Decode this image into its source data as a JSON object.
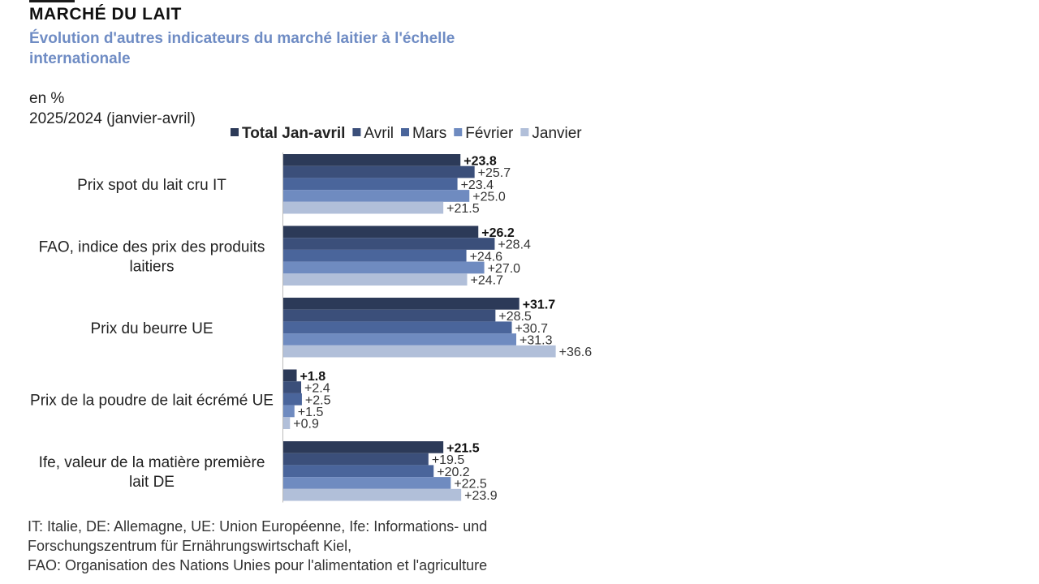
{
  "title": "MARCHÉ DU LAIT",
  "subtitle": "Évolution d'autres indicateurs du marché laitier à l'échelle internationale",
  "unit_line1": "en %",
  "unit_line2": "2025/2024 (janvier-avril)",
  "footnote": {
    "line1": "IT: Italie, DE: Allemagne, UE: Union Européenne, Ife: Informations- und",
    "line2": "Forschungszentrum für Ernährungswirtschaft Kiel,",
    "line3": "FAO: Organisation des Nations Unies pour l'alimentation et l'agriculture"
  },
  "chart_data": {
    "type": "bar",
    "orientation": "horizontal",
    "categories": [
      "Prix spot du lait cru IT",
      "FAO, indice des prix des produits laitiers",
      "Prix du beurre UE",
      "Prix de la poudre de lait écrémé UE",
      "Ife, valeur de la matière première lait DE"
    ],
    "series": [
      {
        "name": "Total Jan-avril",
        "color": "#2c3a58",
        "values": [
          23.8,
          26.2,
          31.7,
          1.8,
          21.5
        ]
      },
      {
        "name": "Avril",
        "color": "#3b4f7a",
        "values": [
          25.7,
          28.4,
          28.5,
          2.4,
          19.5
        ]
      },
      {
        "name": "Mars",
        "color": "#4a659b",
        "values": [
          23.4,
          24.6,
          30.7,
          2.5,
          20.2
        ]
      },
      {
        "name": "Février",
        "color": "#6f8bc0",
        "values": [
          25.0,
          27.0,
          31.3,
          1.5,
          22.5
        ]
      },
      {
        "name": "Janvier",
        "color": "#b1bfd9",
        "values": [
          21.5,
          24.7,
          36.6,
          0.9,
          23.9
        ]
      }
    ],
    "legend_position": "top",
    "value_label_prefix": "+",
    "xlim": [
      0,
      40
    ],
    "grid": false
  }
}
